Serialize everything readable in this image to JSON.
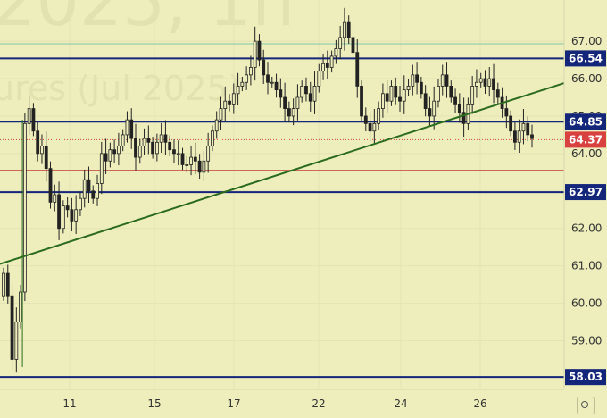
{
  "watermark": {
    "line1": "2025, 1h",
    "line2": "ures (Jul 2025)"
  },
  "colors": {
    "background": "#eeeebd",
    "candle": "#222222",
    "level_line": "#14267a",
    "trend_line": "#2a6b1d",
    "red_line": "#c23a3a",
    "teal_line": "#7fc7a6",
    "current_price": "#d94040",
    "axis_text": "#333333"
  },
  "chart_data": {
    "type": "candlestick",
    "instrument": "ures (Jul 2025)",
    "interval": "1h",
    "ylim": [
      57.7,
      68.1
    ],
    "y_ticks": [
      "67.00",
      "66.00",
      "65.00",
      "64.00",
      "63.00",
      "62.00",
      "61.00",
      "60.00",
      "59.00"
    ],
    "x_ticks": [
      "11",
      "15",
      "17",
      "22",
      "24",
      "26"
    ],
    "price_labels": [
      {
        "value": 66.54,
        "text": "66.54",
        "style": "level"
      },
      {
        "value": 64.85,
        "text": "64.85",
        "style": "level"
      },
      {
        "value": 64.37,
        "text": "64.37",
        "style": "current"
      },
      {
        "value": 62.97,
        "text": "62.97",
        "style": "level"
      },
      {
        "value": 58.03,
        "text": "58.03",
        "style": "level"
      }
    ],
    "horizontal_lines": [
      {
        "value": 66.93,
        "style": "teal"
      },
      {
        "value": 66.54,
        "style": "level"
      },
      {
        "value": 64.85,
        "style": "level"
      },
      {
        "value": 64.37,
        "style": "current-dotted"
      },
      {
        "value": 63.55,
        "style": "red"
      },
      {
        "value": 62.97,
        "style": "level"
      },
      {
        "value": 58.03,
        "style": "level"
      }
    ],
    "trend_line": {
      "from": [
        0,
        61.05
      ],
      "to": [
        142,
        65.88
      ]
    },
    "candles_close": [
      60.8,
      60.2,
      58.5,
      59.5,
      60.3,
      64.8,
      65.2,
      64.6,
      64.0,
      64.2,
      63.6,
      62.7,
      62.9,
      62.0,
      62.6,
      62.5,
      62.2,
      62.5,
      62.8,
      63.3,
      63.0,
      62.8,
      63.2,
      64.0,
      63.8,
      64.1,
      64.0,
      64.2,
      64.5,
      64.9,
      64.4,
      63.9,
      64.2,
      64.4,
      64.3,
      64.0,
      64.3,
      64.5,
      64.3,
      64.1,
      64.0,
      64.0,
      63.7,
      63.7,
      63.9,
      63.8,
      63.5,
      63.8,
      64.2,
      64.6,
      64.9,
      65.2,
      65.4,
      65.3,
      65.6,
      65.8,
      65.9,
      66.1,
      66.3,
      67.0,
      66.5,
      66.1,
      65.9,
      65.9,
      65.7,
      65.5,
      65.2,
      65.0,
      65.2,
      65.5,
      65.8,
      65.6,
      65.4,
      65.8,
      66.2,
      66.4,
      66.3,
      66.6,
      66.8,
      67.1,
      67.5,
      67.1,
      66.7,
      65.8,
      65.0,
      64.8,
      64.6,
      64.8,
      65.2,
      65.6,
      65.4,
      65.8,
      65.5,
      65.4,
      65.7,
      65.8,
      66.1,
      65.9,
      65.6,
      65.2,
      65.0,
      65.4,
      65.8,
      66.1,
      65.8,
      65.5,
      65.3,
      65.1,
      64.8,
      65.3,
      65.8,
      65.9,
      66.0,
      65.8,
      66.0,
      65.7,
      65.5,
      65.2,
      65.0,
      64.6,
      64.3,
      64.6,
      64.8,
      64.5,
      64.4
    ]
  }
}
